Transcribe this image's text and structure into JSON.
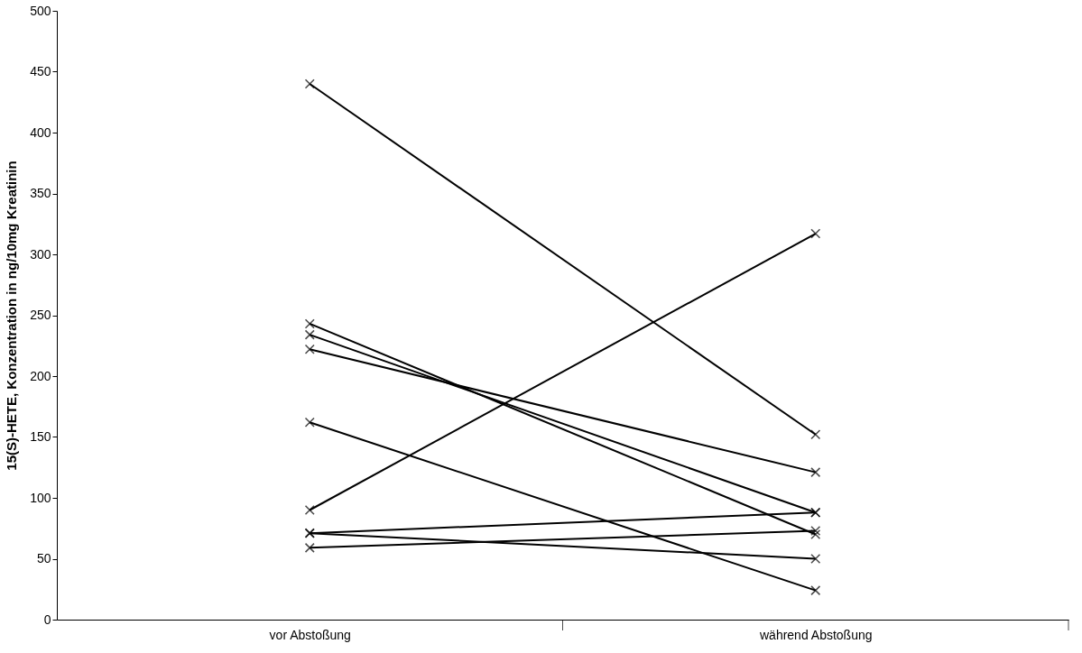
{
  "chart_data": {
    "type": "line",
    "ylabel": "15(S)-HETE, Konzentration in ng/10mg Kreatinin",
    "categories": [
      "vor Abstoßung",
      "während Abstoßung"
    ],
    "series": [
      {
        "color": "#000000",
        "values": [
          440,
          152
        ]
      },
      {
        "color": "#000000",
        "values": [
          243,
          70
        ]
      },
      {
        "color": "#000000",
        "values": [
          234,
          88
        ]
      },
      {
        "color": "#000000",
        "values": [
          222,
          121
        ]
      },
      {
        "color": "#000000",
        "values": [
          162,
          24
        ]
      },
      {
        "color": "#000000",
        "values": [
          90,
          317
        ]
      },
      {
        "color": "#000000",
        "values": [
          71,
          88
        ]
      },
      {
        "color": "#000000",
        "values": [
          71,
          50
        ]
      },
      {
        "color": "#000000",
        "values": [
          59,
          73
        ]
      }
    ],
    "ylim": [
      0,
      500
    ],
    "yticks": [
      0,
      50,
      100,
      150,
      200,
      250,
      300,
      350,
      400,
      450,
      500
    ],
    "grid": false,
    "legend": false,
    "marker": "cross",
    "line_style": "solid"
  }
}
